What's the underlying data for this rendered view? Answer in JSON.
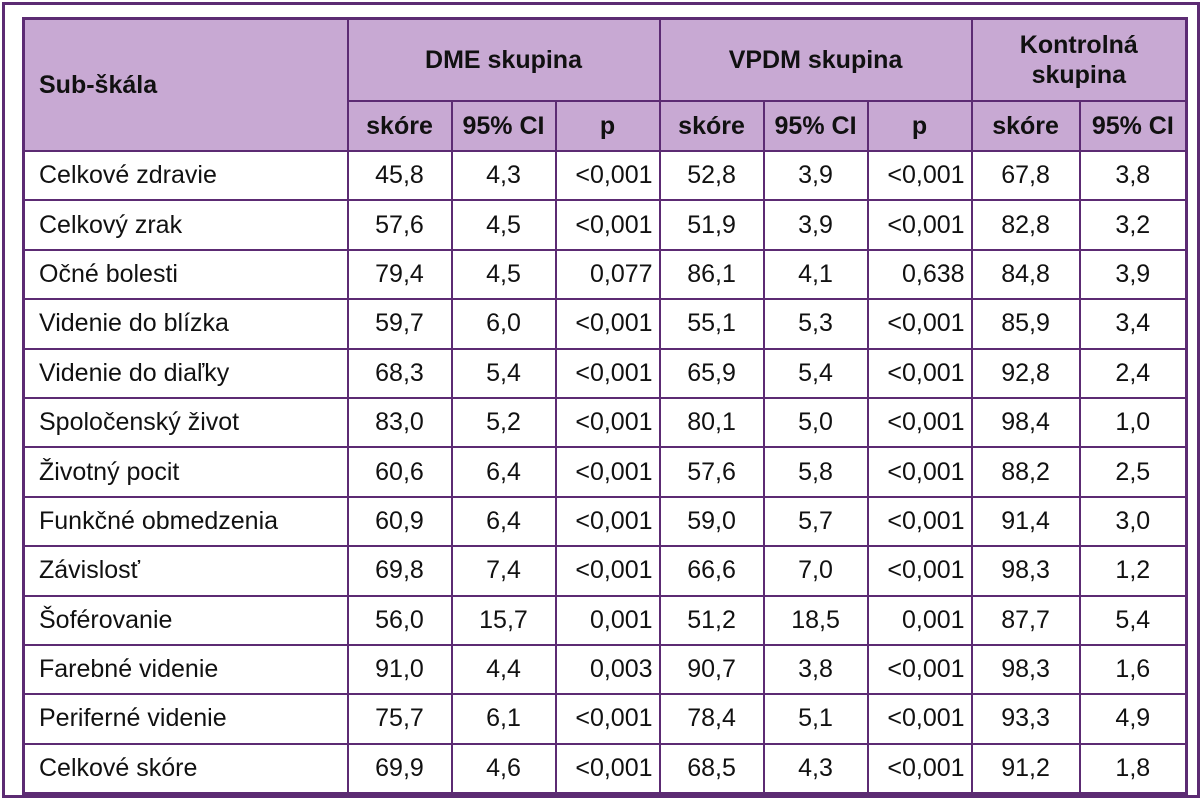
{
  "header": {
    "row_label": "Sub-škála",
    "groups": [
      {
        "label": "DME skupina"
      },
      {
        "label": "VPDM skupina"
      },
      {
        "label_line1": "Kontrolná",
        "label_line2": "skupina"
      }
    ],
    "sub": {
      "score": "skóre",
      "ci": "95% CI",
      "p": "p"
    }
  },
  "rows": [
    {
      "label": "Celkové zdravie",
      "dme": [
        "45,8",
        "4,3",
        "<0,001"
      ],
      "vpdm": [
        "52,8",
        "3,9",
        "<0,001"
      ],
      "ctrl": [
        "67,8",
        "3,8"
      ]
    },
    {
      "label": "Celkový zrak",
      "dme": [
        "57,6",
        "4,5",
        "<0,001"
      ],
      "vpdm": [
        "51,9",
        "3,9",
        "<0,001"
      ],
      "ctrl": [
        "82,8",
        "3,2"
      ]
    },
    {
      "label": "Očné bolesti",
      "dme": [
        "79,4",
        "4,5",
        "0,077"
      ],
      "vpdm": [
        "86,1",
        "4,1",
        "0,638"
      ],
      "ctrl": [
        "84,8",
        "3,9"
      ]
    },
    {
      "label": "Videnie do blízka",
      "dme": [
        "59,7",
        "6,0",
        "<0,001"
      ],
      "vpdm": [
        "55,1",
        "5,3",
        "<0,001"
      ],
      "ctrl": [
        "85,9",
        "3,4"
      ]
    },
    {
      "label": "Videnie do diaľky",
      "dme": [
        "68,3",
        "5,4",
        "<0,001"
      ],
      "vpdm": [
        "65,9",
        "5,4",
        "<0,001"
      ],
      "ctrl": [
        "92,8",
        "2,4"
      ]
    },
    {
      "label": "Spoločenský život",
      "dme": [
        "83,0",
        "5,2",
        "<0,001"
      ],
      "vpdm": [
        "80,1",
        "5,0",
        "<0,001"
      ],
      "ctrl": [
        "98,4",
        "1,0"
      ]
    },
    {
      "label": "Životný pocit",
      "dme": [
        "60,6",
        "6,4",
        "<0,001"
      ],
      "vpdm": [
        "57,6",
        "5,8",
        "<0,001"
      ],
      "ctrl": [
        "88,2",
        "2,5"
      ]
    },
    {
      "label": "Funkčné obmedzenia",
      "dme": [
        "60,9",
        "6,4",
        "<0,001"
      ],
      "vpdm": [
        "59,0",
        "5,7",
        "<0,001"
      ],
      "ctrl": [
        "91,4",
        "3,0"
      ]
    },
    {
      "label": "Závislosť",
      "dme": [
        "69,8",
        "7,4",
        "<0,001"
      ],
      "vpdm": [
        "66,6",
        "7,0",
        "<0,001"
      ],
      "ctrl": [
        "98,3",
        "1,2"
      ]
    },
    {
      "label": "Šoférovanie",
      "dme": [
        "56,0",
        "15,7",
        "0,001"
      ],
      "vpdm": [
        "51,2",
        "18,5",
        "0,001"
      ],
      "ctrl": [
        "87,7",
        "5,4"
      ]
    },
    {
      "label": "Farebné videnie",
      "dme": [
        "91,0",
        "4,4",
        "0,003"
      ],
      "vpdm": [
        "90,7",
        "3,8",
        "<0,001"
      ],
      "ctrl": [
        "98,3",
        "1,6"
      ]
    },
    {
      "label": "Periferné videnie",
      "dme": [
        "75,7",
        "6,1",
        "<0,001"
      ],
      "vpdm": [
        "78,4",
        "5,1",
        "<0,001"
      ],
      "ctrl": [
        "93,3",
        "4,9"
      ]
    },
    {
      "label": "Celkové skóre",
      "dme": [
        "69,9",
        "4,6",
        "<0,001"
      ],
      "vpdm": [
        "68,5",
        "4,3",
        "<0,001"
      ],
      "ctrl": [
        "91,2",
        "1,8"
      ]
    }
  ],
  "colors": {
    "border": "#5c2b73",
    "header_bg": "#c8a9d3"
  }
}
